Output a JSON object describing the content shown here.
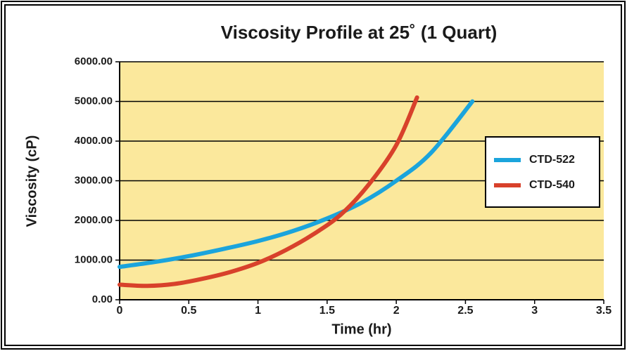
{
  "chart_data": {
    "type": "line",
    "title": "Viscosity Profile at 25˚ (1 Quart)",
    "x_label": "Time (hr)",
    "y_label": "Viscosity (cP)",
    "xlim": [
      0,
      3.5
    ],
    "xticks": [
      0,
      0.5,
      1,
      1.5,
      2,
      2.5,
      3,
      3.5
    ],
    "ylim": [
      0,
      6000
    ],
    "yticks": [
      {
        "value": 0,
        "label": "0.00"
      },
      {
        "value": 1000,
        "label": "1000.00"
      },
      {
        "value": 2000,
        "label": "2000.00"
      },
      {
        "value": 3000,
        "label": "3000.00"
      },
      {
        "value": 4000,
        "label": "4000.00"
      },
      {
        "value": 5000,
        "label": "5000.00"
      },
      {
        "value": 6000,
        "label": "6000.00"
      }
    ],
    "grid": true,
    "plot_background": "#fbe89c",
    "legend_position": "right",
    "series": [
      {
        "name": "CTD-522",
        "color": "#1ba4dc",
        "x": [
          0,
          0.25,
          0.5,
          0.75,
          1,
          1.25,
          1.5,
          1.75,
          2,
          2.25,
          2.55
        ],
        "values": [
          830,
          950,
          1100,
          1280,
          1480,
          1730,
          2050,
          2450,
          3000,
          3700,
          5000
        ]
      },
      {
        "name": "CTD-540",
        "color": "#d8412b",
        "x": [
          0,
          0.2,
          0.4,
          0.6,
          0.8,
          1,
          1.2,
          1.4,
          1.6,
          1.8,
          2,
          2.15
        ],
        "values": [
          380,
          350,
          400,
          530,
          700,
          930,
          1250,
          1650,
          2150,
          2900,
          3900,
          5100
        ]
      }
    ]
  }
}
